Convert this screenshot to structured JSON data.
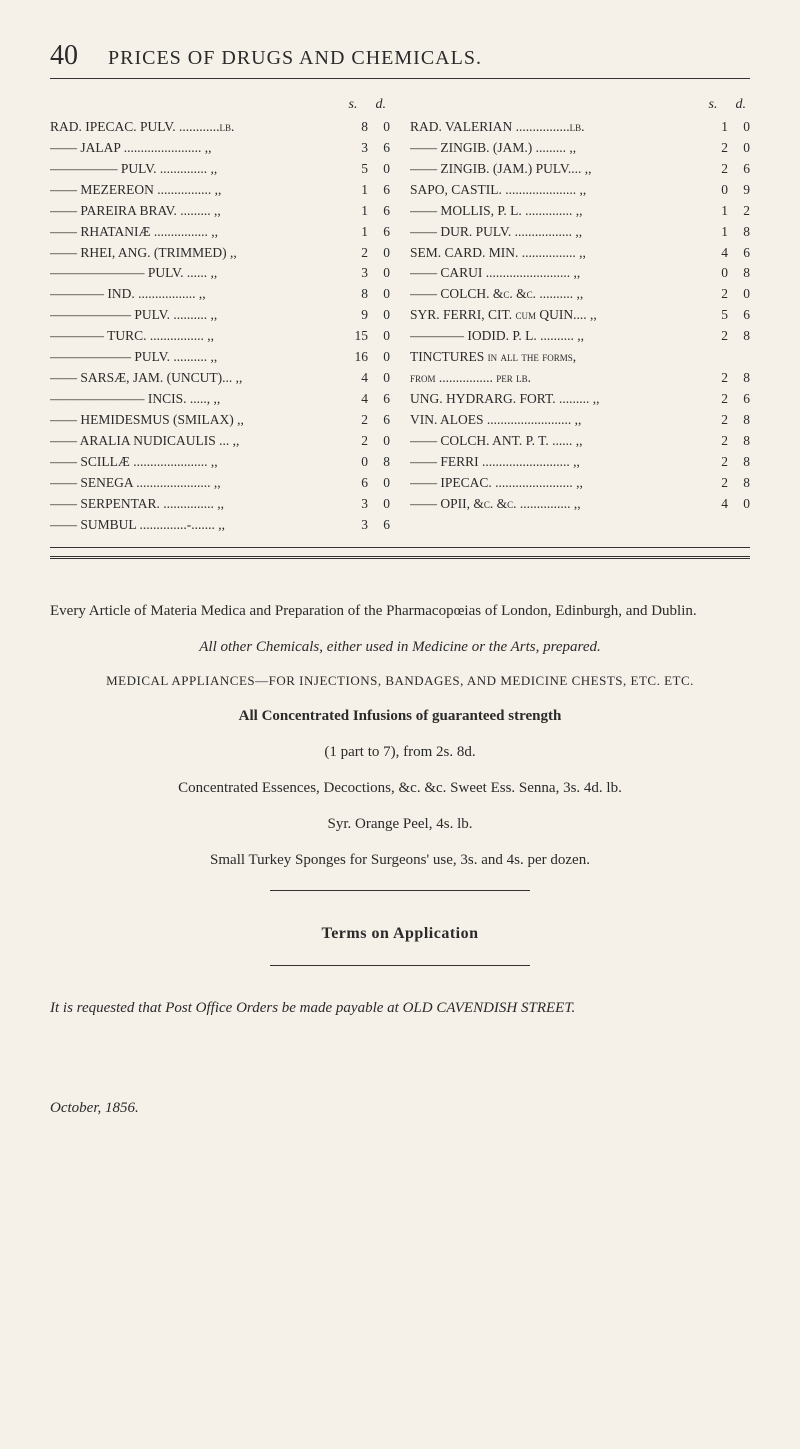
{
  "page_number": "40",
  "page_title": "PRICES OF DRUGS AND CHEMICALS.",
  "col_headers": {
    "s": "s.",
    "d": "d."
  },
  "left_items": [
    {
      "name": "RAD. IPECAC. PULV. ............lb.",
      "s": "8",
      "d": "0"
    },
    {
      "name": "—— JALAP ....................... ,,",
      "s": "3",
      "d": "6"
    },
    {
      "name": "————— PULV. .............. ,,",
      "s": "5",
      "d": "0"
    },
    {
      "name": "—— MEZEREON ................ ,,",
      "s": "1",
      "d": "6"
    },
    {
      "name": "—— PAREIRA BRAV. ......... ,,",
      "s": "1",
      "d": "6"
    },
    {
      "name": "—— RHATANIÆ ................ ,,",
      "s": "1",
      "d": "6"
    },
    {
      "name": "—— RHEI, ANG. (TRIMMED) ,,",
      "s": "2",
      "d": "0"
    },
    {
      "name": "——————— PULV. ...... ,,",
      "s": "3",
      "d": "0"
    },
    {
      "name": "———— IND. ................. ,,",
      "s": "8",
      "d": "0"
    },
    {
      "name": "—————— PULV. .......... ,,",
      "s": "9",
      "d": "0"
    },
    {
      "name": "———— TURC. ................ ,,",
      "s": "15",
      "d": "0"
    },
    {
      "name": "—————— PULV. .......... ,,",
      "s": "16",
      "d": "0"
    },
    {
      "name": "—— SARSÆ, JAM. (UNCUT)... ,,",
      "s": "4",
      "d": "0"
    },
    {
      "name": "——————— INCIS. ....., ,,",
      "s": "4",
      "d": "6"
    },
    {
      "name": "—— HEMIDESMUS (SMILAX) ,,",
      "s": "2",
      "d": "6"
    },
    {
      "name": "—— ARALIA NUDICAULIS ... ,,",
      "s": "2",
      "d": "0"
    },
    {
      "name": "—— SCILLÆ ...................... ,,",
      "s": "0",
      "d": "8"
    },
    {
      "name": "—— SENEGA ...................... ,,",
      "s": "6",
      "d": "0"
    },
    {
      "name": "—— SERPENTAR. ............... ,,",
      "s": "3",
      "d": "0"
    },
    {
      "name": "—— SUMBUL ..............-....... ,,",
      "s": "3",
      "d": "6"
    }
  ],
  "right_items": [
    {
      "name": "RAD. VALERIAN ................lb.",
      "s": "1",
      "d": "0"
    },
    {
      "name": "—— ZINGIB. (JAM.) ......... ,,",
      "s": "2",
      "d": "0"
    },
    {
      "name": "—— ZINGIB. (JAM.) PULV.... ,,",
      "s": "2",
      "d": "6"
    },
    {
      "name": "SAPO, CASTIL. ..................... ,,",
      "s": "0",
      "d": "9"
    },
    {
      "name": "—— MOLLIS, P. L. .............. ,,",
      "s": "1",
      "d": "2"
    },
    {
      "name": "—— DUR. PULV. ................. ,,",
      "s": "1",
      "d": "8"
    },
    {
      "name": "SEM. CARD. MIN. ................ ,,",
      "s": "4",
      "d": "6"
    },
    {
      "name": "—— CARUI ......................... ,,",
      "s": "0",
      "d": "8"
    },
    {
      "name": "—— COLCH. &c. &c. .......... ,,",
      "s": "2",
      "d": "0"
    },
    {
      "name": "SYR. FERRI, CIT. cum QUIN.... ,,",
      "s": "5",
      "d": "6"
    },
    {
      "name": "———— IODID. P. L. .......... ,,",
      "s": "2",
      "d": "8"
    },
    {
      "name": "TINCTURES in all the forms,",
      "s": "",
      "d": ""
    },
    {
      "name": "            from ................ per lb.",
      "s": "2",
      "d": "8"
    },
    {
      "name": "UNG. HYDRARG. FORT. ......... ,,",
      "s": "2",
      "d": "6"
    },
    {
      "name": "VIN. ALOES ......................... ,,",
      "s": "2",
      "d": "8"
    },
    {
      "name": "—— COLCH. ANT. P. T. ...... ,,",
      "s": "2",
      "d": "8"
    },
    {
      "name": "—— FERRI .......................... ,,",
      "s": "2",
      "d": "8"
    },
    {
      "name": "—— IPECAC. ....................... ,,",
      "s": "2",
      "d": "8"
    },
    {
      "name": "—— OPII, &c. &c. ............... ,,",
      "s": "4",
      "d": "0"
    }
  ],
  "body": {
    "p1": "Every Article of Materia Medica and Preparation of the Pharmacopœias of London, Edinburgh, and Dublin.",
    "p2": "All other Chemicals, either used in Medicine or the Arts, prepared.",
    "p3": "MEDICAL APPLIANCES—FOR INJECTIONS, BANDAGES, AND MEDICINE CHESTS, ETC. ETC.",
    "p4": "All Concentrated Infusions of guaranteed strength",
    "p5": "(1 part to 7), from 2s. 8d.",
    "p6": "Concentrated Essences, Decoctions, &c. &c.  Sweet Ess. Senna, 3s. 4d. lb.",
    "p7": "Syr. Orange Peel, 4s. lb.",
    "p8": "Small Turkey Sponges for Surgeons' use, 3s. and 4s. per dozen.",
    "terms": "Terms on Application",
    "request": "It is requested that Post Office Orders be made payable at OLD CAVENDISH STREET.",
    "date": "October, 1856."
  }
}
